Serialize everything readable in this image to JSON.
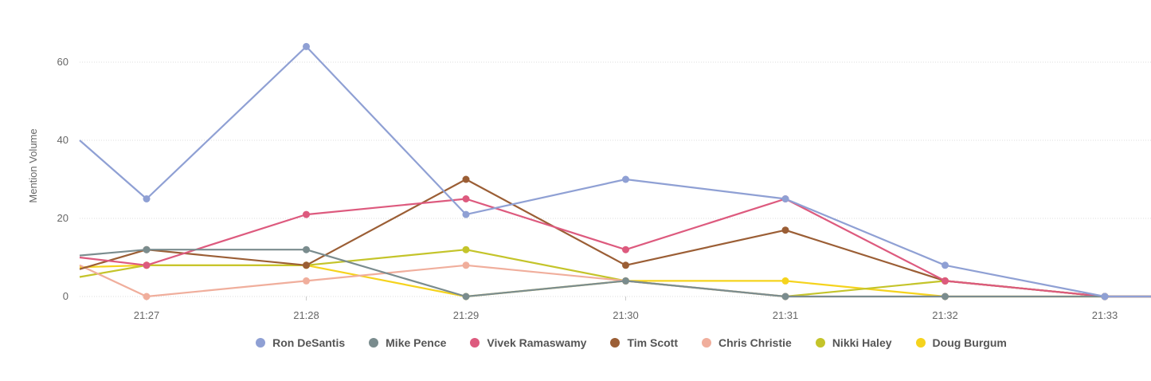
{
  "chart_data": {
    "type": "line",
    "title": "",
    "xlabel": "",
    "ylabel": "Mention Volume",
    "categories": [
      "21:26.6",
      "21:27",
      "21:28",
      "21:29",
      "21:30",
      "21:31",
      "21:32",
      "21:33",
      "21:33.3"
    ],
    "x_ticks": [
      "21:27",
      "21:28",
      "21:29",
      "21:30",
      "21:31",
      "21:32",
      "21:33"
    ],
    "y_ticks": [
      0,
      20,
      40,
      60
    ],
    "ylim": [
      0,
      70
    ],
    "grid": true,
    "legend_position": "bottom",
    "series": [
      {
        "name": "Ron DeSantis",
        "color": "#8fa0d4",
        "values": [
          40,
          25,
          64,
          21,
          30,
          25,
          8,
          0,
          0
        ]
      },
      {
        "name": "Mike Pence",
        "color": "#7a8c8e",
        "values": [
          10.5,
          12,
          12,
          0,
          4,
          0,
          0,
          0,
          0
        ]
      },
      {
        "name": "Vivek Ramaswamy",
        "color": "#dd5a7e",
        "values": [
          10,
          8,
          21,
          25,
          12,
          25,
          4,
          0,
          0
        ]
      },
      {
        "name": "Tim Scott",
        "color": "#9b5e35",
        "values": [
          7,
          12,
          8,
          30,
          8,
          17,
          4,
          0,
          0
        ]
      },
      {
        "name": "Chris Christie",
        "color": "#f0ae9c",
        "values": [
          8,
          0,
          4,
          8,
          4,
          0,
          0,
          0,
          0
        ]
      },
      {
        "name": "Nikki Haley",
        "color": "#c4c42a",
        "values": [
          5,
          8,
          8,
          12,
          4,
          0,
          4,
          0,
          0
        ]
      },
      {
        "name": "Doug Burgum",
        "color": "#f5d31d",
        "values": [
          7.5,
          8,
          8,
          0,
          4,
          4,
          0,
          0,
          0
        ]
      }
    ]
  }
}
